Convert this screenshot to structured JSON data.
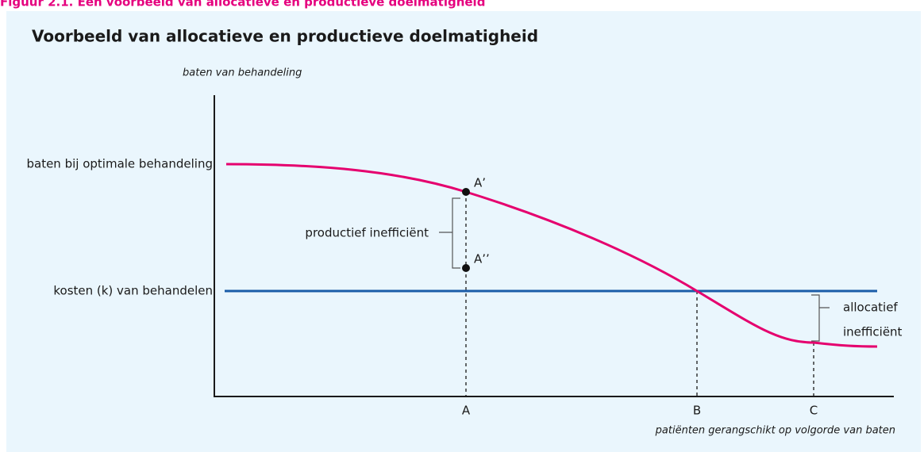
{
  "figure_label": "Figuur 2.1. Een voorbeeld van allocatieve en productieve doelmatigheid",
  "title": "Voorbeeld van allocatieve en productieve doelmatigheid",
  "y_axis_label": "baten van behandeling",
  "x_axis_label": "patiënten gerangschikt op volgorde van baten",
  "levels": {
    "benefit": "baten bij optimale behandeling",
    "cost": "kosten (k) van behandelen"
  },
  "points": {
    "a_prime": "A’",
    "a_double_prime": "A’’"
  },
  "annotations": {
    "productive": "productief inefficiënt",
    "allocative_1": "allocatief",
    "allocative_2": "inefficiënt"
  },
  "x_ticks": [
    "A",
    "B",
    "C"
  ]
}
